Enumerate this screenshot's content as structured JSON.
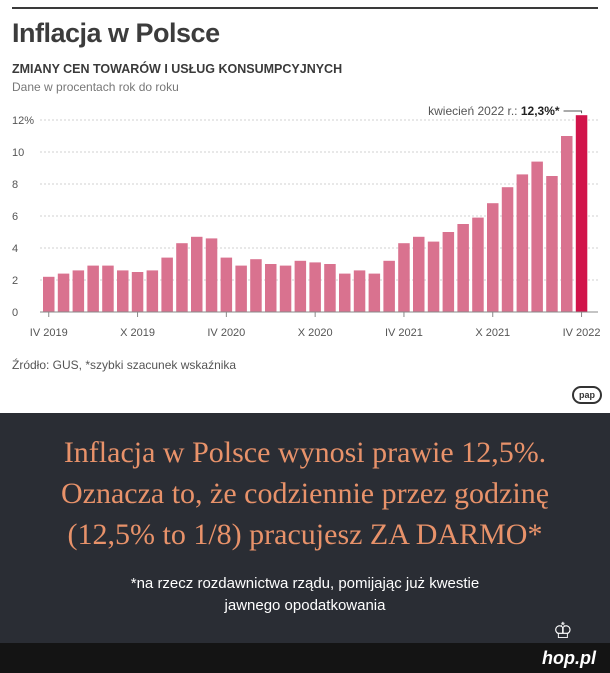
{
  "chart_data": {
    "type": "bar",
    "title": "Inflacja w Polsce",
    "subtitle": "ZMIANY CEN TOWARÓW I USŁUG KONSUMPCYJNYCH",
    "unit_note": "Dane w procentach rok do roku",
    "source": "Źródło: GUS, *szybki szacunek wskaźnika",
    "ylim": [
      0,
      13
    ],
    "y_ticks": [
      "0",
      "2",
      "4",
      "6",
      "8",
      "10",
      "12%"
    ],
    "y_tick_values": [
      0,
      2,
      4,
      6,
      8,
      10,
      12
    ],
    "grid": true,
    "x_tick_labels": [
      {
        "label": "IV 2019",
        "index": 0
      },
      {
        "label": "X 2019",
        "index": 6
      },
      {
        "label": "IV 2020",
        "index": 12
      },
      {
        "label": "X 2020",
        "index": 18
      },
      {
        "label": "IV 2021",
        "index": 24
      },
      {
        "label": "X 2021",
        "index": 30
      },
      {
        "label": "IV 2022",
        "index": 36
      }
    ],
    "values": [
      2.2,
      2.4,
      2.6,
      2.9,
      2.9,
      2.6,
      2.5,
      2.6,
      3.4,
      4.3,
      4.7,
      4.6,
      3.4,
      2.9,
      3.3,
      3.0,
      2.9,
      3.2,
      3.1,
      3.0,
      2.4,
      2.6,
      2.4,
      3.2,
      4.3,
      4.7,
      4.4,
      5.0,
      5.5,
      5.9,
      6.8,
      7.8,
      8.6,
      9.4,
      8.5,
      11.0,
      12.3
    ],
    "bar_color": "#d9728f",
    "highlight_color": "#d1144a",
    "highlight_index": 36,
    "annotation_label": "kwiecień 2022 r.:",
    "annotation_value": "12,3%*"
  },
  "caption": {
    "line1": "Inflacja w Polsce wynosi prawie 12,5%.",
    "line2": "Oznacza to, że codziennie przez godzinę",
    "line3": "(12,5% to 1/8) pracujesz ZA DARMO*",
    "note_line1": "*na rzecz rozdawnictwa rządu, pomijając już kwestie",
    "note_line2": "jawnego opodatkowania"
  },
  "logo_text": "pap",
  "watermark": "hop.pl",
  "colors": {
    "caption_text": "#e8926a",
    "background_dark": "#2a2d34"
  }
}
